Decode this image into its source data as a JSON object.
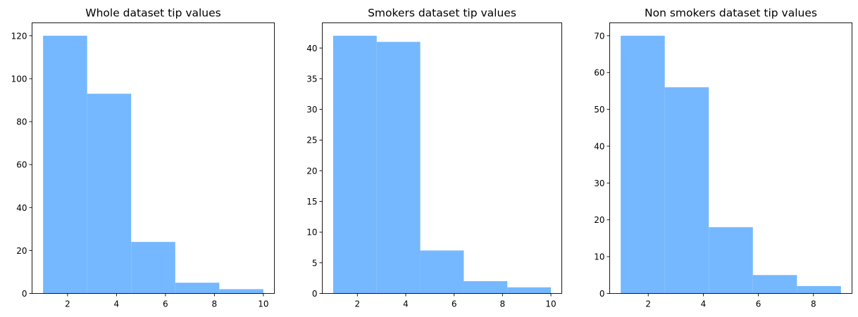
{
  "chart_data": [
    {
      "type": "bar",
      "title": "Whole dataset tip values",
      "xlabel": "",
      "ylabel": "",
      "bin_edges": [
        1.0,
        2.8,
        4.6,
        6.4,
        8.2,
        10.0
      ],
      "values": [
        120,
        93,
        24,
        5,
        2
      ],
      "xlim": [
        0.55,
        10.45
      ],
      "ylim": [
        0,
        126
      ],
      "xticks": [
        2,
        4,
        6,
        8,
        10
      ],
      "yticks": [
        0,
        20,
        40,
        60,
        80,
        100,
        120
      ],
      "color": "#75b8ff",
      "grid": false
    },
    {
      "type": "bar",
      "title": "Smokers dataset tip values",
      "xlabel": "",
      "ylabel": "",
      "bin_edges": [
        1.0,
        2.8,
        4.6,
        6.4,
        8.2,
        10.0
      ],
      "values": [
        42,
        41,
        7,
        2,
        1
      ],
      "xlim": [
        0.55,
        10.45
      ],
      "ylim": [
        0,
        44.1
      ],
      "xticks": [
        2,
        4,
        6,
        8,
        10
      ],
      "yticks": [
        0,
        5,
        10,
        15,
        20,
        25,
        30,
        35,
        40
      ],
      "color": "#75b8ff",
      "grid": false
    },
    {
      "type": "bar",
      "title": "Non smokers dataset tip values",
      "xlabel": "",
      "ylabel": "",
      "bin_edges": [
        1.0,
        2.6,
        4.2,
        5.8,
        7.4,
        9.0
      ],
      "values": [
        70,
        56,
        18,
        5,
        2
      ],
      "xlim": [
        0.6,
        9.4
      ],
      "ylim": [
        0,
        73.5
      ],
      "xticks": [
        2,
        4,
        6,
        8
      ],
      "yticks": [
        0,
        10,
        20,
        30,
        40,
        50,
        60,
        70
      ],
      "color": "#75b8ff",
      "grid": false
    }
  ]
}
